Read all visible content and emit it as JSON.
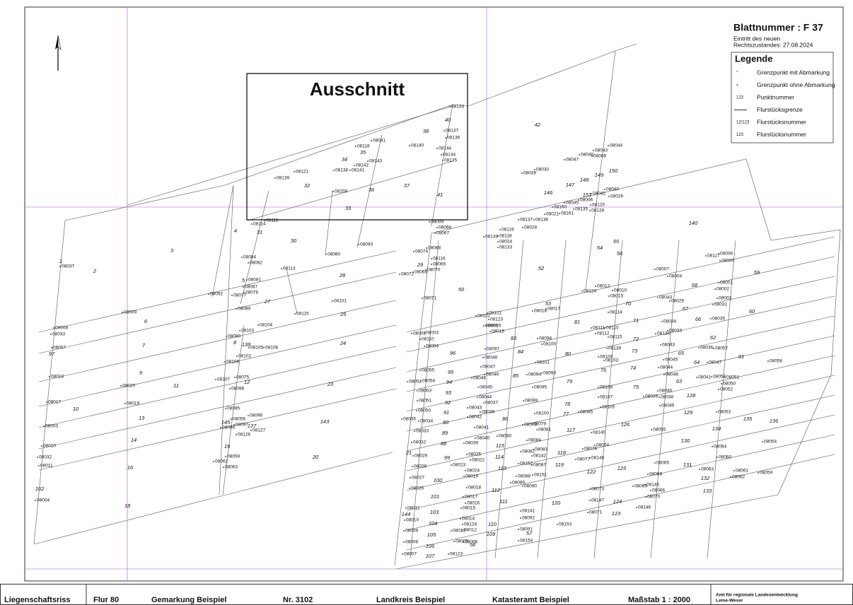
{
  "header": {
    "sheet": "Blattnummer : F   37",
    "effective_label": "Eintritt des neuen",
    "effective_date": "Rechtszustandes:  27.08.2024"
  },
  "legend": {
    "title": "Legende",
    "items": [
      {
        "symbol": "°",
        "label": "Grenzpunkt mit Abmarkung"
      },
      {
        "symbol": "▪",
        "label": "Grenzpunkt ohne Abmarkung"
      },
      {
        "symbol": "123",
        "label": "Punktnummer"
      },
      {
        "symbol": "",
        "label": "Flurstücksgrenze"
      },
      {
        "symbol": "12/123",
        "label": "Flurstücksnummer"
      },
      {
        "symbol": "123",
        "label": "Flurstücksnummer"
      }
    ]
  },
  "detail_box": {
    "title": "Ausschnitt"
  },
  "parcels": [
    "42",
    "38",
    "40",
    "35",
    "34",
    "32",
    "36",
    "37",
    "33",
    "41",
    "4",
    "31",
    "30",
    "3",
    "2",
    "28",
    "27",
    "25",
    "6",
    "7",
    "24",
    "9",
    "23",
    "11",
    "10",
    "13",
    "143",
    "14",
    "19",
    "20",
    "16",
    "18",
    "102",
    "97",
    "1",
    "29",
    "50",
    "52",
    "54",
    "55",
    "56",
    "140",
    "59",
    "60",
    "61",
    "146",
    "147",
    "148",
    "149",
    "150",
    "151",
    "96",
    "95",
    "94",
    "93",
    "92",
    "91",
    "90",
    "89",
    "88",
    "99",
    "100",
    "101",
    "103",
    "104",
    "105",
    "106",
    "107",
    "58",
    "57",
    "109",
    "110",
    "111",
    "112",
    "113",
    "114",
    "115",
    "86",
    "85",
    "84",
    "83",
    "53",
    "81",
    "80",
    "79",
    "78",
    "77",
    "117",
    "118",
    "119",
    "120",
    "122",
    "125",
    "124",
    "123",
    "126",
    "130",
    "131",
    "132",
    "133",
    "134",
    "135",
    "136",
    "129",
    "128",
    "75",
    "74",
    "76",
    "73",
    "72",
    "71",
    "70",
    "63",
    "64",
    "65",
    "62",
    "66",
    "67",
    "68",
    "5",
    "8",
    "138",
    "145",
    "137",
    "12",
    "21",
    "144"
  ],
  "points": [
    "08133",
    "08137",
    "08136",
    "08041",
    "08118",
    "08140",
    "08144",
    "08134",
    "08135",
    "08143",
    "08142",
    "08141",
    "08138",
    "08121",
    "08139",
    "08208",
    "08112",
    "08114",
    "08099",
    "08066",
    "08067",
    "08093",
    "08080",
    "08068",
    "08074",
    "08116",
    "08065",
    "08070",
    "08072",
    "08069",
    "08084",
    "08082",
    "08113",
    "08081",
    "08087",
    "08078",
    "08077",
    "08092",
    "08089",
    "08115",
    "08101",
    "08071",
    "08104",
    "08103",
    "08090",
    "08105",
    "08106",
    "08108",
    "08102",
    "08107",
    "08075",
    "08098",
    "08095",
    "08096",
    "08056",
    "08097",
    "08094",
    "08126",
    "08127",
    "08059",
    "08062",
    "08063",
    "08037",
    "08033",
    "08008",
    "08009",
    "08007",
    "08018",
    "08020",
    "08017",
    "08019",
    "08003",
    "08010",
    "08032",
    "08011",
    "08004",
    "08030",
    "08039",
    "08047",
    "08046",
    "08043",
    "08008",
    "08044",
    "08040",
    "08026",
    "08042",
    "08006",
    "08120",
    "08128",
    "08135",
    "08045",
    "08160",
    "08161",
    "08021",
    "08136",
    "08137",
    "08028",
    "08119",
    "08139",
    "08118",
    "08024",
    "08133",
    "08124",
    "08013",
    "08010",
    "08015",
    "08114",
    "08007",
    "08004",
    "08117",
    "08006",
    "08000",
    "08001",
    "08002",
    "08003",
    "08031",
    "08035",
    "08029",
    "08043",
    "08034",
    "08033",
    "08134",
    "08043",
    "08036",
    "08057",
    "08047",
    "08045",
    "08044",
    "08046",
    "08056",
    "08058",
    "08051",
    "08050",
    "08052",
    "08041",
    "08040",
    "08039",
    "08038",
    "08049",
    "08053",
    "08055",
    "08054",
    "08064",
    "08060",
    "08061",
    "08062",
    "08063",
    "08059",
    "08065",
    "08068",
    "08145",
    "08069",
    "08066",
    "08070",
    "08146",
    "08073",
    "08147",
    "08071",
    "08153",
    "08074",
    "08076",
    "08148",
    "08077",
    "08140",
    "08105",
    "08107",
    "08108",
    "08109",
    "08103",
    "08139",
    "08115",
    "08110",
    "08111",
    "08112",
    "08122",
    "08123",
    "08019",
    "08016",
    "08121",
    "08018",
    "08017",
    "08000",
    "08098",
    "08100",
    "08101",
    "08093",
    "08094",
    "08095",
    "08099",
    "08100",
    "08097",
    "08048",
    "08047",
    "08049",
    "08046",
    "08045",
    "08044",
    "08037",
    "08043",
    "08038",
    "08042",
    "08041",
    "08040",
    "08039",
    "08025",
    "08022",
    "08023",
    "08024",
    "08019",
    "08018",
    "08017",
    "08016",
    "08015",
    "08014",
    "08124",
    "08012",
    "08013",
    "08005",
    "08006",
    "08123",
    "08141",
    "08092",
    "08091",
    "08154",
    "08087",
    "08152",
    "08089",
    "08090",
    "08088",
    "08151",
    "08082",
    "08083",
    "08142",
    "08080",
    "08084",
    "08079",
    "08078",
    "08081",
    "08085",
    "08002",
    "08003",
    "08110",
    "08004",
    "08055",
    "08052",
    "08054",
    "08053",
    "08051",
    "08050",
    "08034",
    "08035",
    "08033",
    "08032",
    "08029",
    "08028",
    "08027",
    "08026",
    "08011",
    "08010",
    "08009",
    "08008",
    "08007"
  ],
  "footer": {
    "type": "Liegenschaftsriss",
    "flur": "Flur  80",
    "gemarkung": "Gemarkung  Beispiel",
    "number": "Nr. 3102",
    "district": "Landkreis  Beispiel",
    "office": "Katasteramt  Beispiel",
    "scale": "Maßstab  1 : 2000",
    "authority": "Amt für regionale Landesentwicklung",
    "authority_region": "Leine-Weser"
  }
}
